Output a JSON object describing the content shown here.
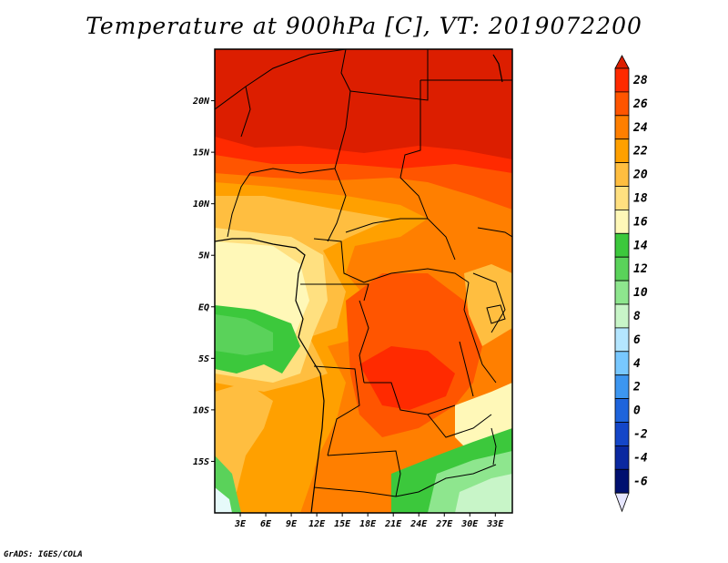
{
  "title": "Temperature at 900hPa [C], VT: 2019072200",
  "credit": "GrADS: IGES/COLA",
  "map": {
    "lon_range": [
      0,
      35
    ],
    "lat_range": [
      -20,
      25
    ],
    "lat_labels": [
      {
        "lat": 20,
        "label": "20N"
      },
      {
        "lat": 15,
        "label": "15N"
      },
      {
        "lat": 10,
        "label": "10N"
      },
      {
        "lat": 5,
        "label": "5N"
      },
      {
        "lat": 0,
        "label": "EQ"
      },
      {
        "lat": -5,
        "label": "5S"
      },
      {
        "lat": -10,
        "label": "10S"
      },
      {
        "lat": -15,
        "label": "15S"
      }
    ],
    "lon_labels": [
      {
        "lon": 3,
        "label": "3E"
      },
      {
        "lon": 6,
        "label": "6E"
      },
      {
        "lon": 9,
        "label": "9E"
      },
      {
        "lon": 12,
        "label": "12E"
      },
      {
        "lon": 15,
        "label": "15E"
      },
      {
        "lon": 18,
        "label": "18E"
      },
      {
        "lon": 21,
        "label": "21E"
      },
      {
        "lon": 24,
        "label": "24E"
      },
      {
        "lon": 27,
        "label": "27E"
      },
      {
        "lon": 30,
        "label": "30E"
      },
      {
        "lon": 33,
        "label": "33E"
      }
    ]
  },
  "colorbar": {
    "levels": [
      "28",
      "26",
      "24",
      "22",
      "20",
      "18",
      "16",
      "14",
      "12",
      "10",
      "8",
      "6",
      "4",
      "2",
      "0",
      "-2",
      "-4",
      "-6"
    ],
    "colors": [
      "#ff2a00",
      "#ff5500",
      "#ff7f00",
      "#ffa000",
      "#ffbe40",
      "#ffe080",
      "#fff8b8",
      "#3cc83c",
      "#5ad25a",
      "#8ee68e",
      "#c8f5c8",
      "#b4e6ff",
      "#78c8ff",
      "#3c96f0",
      "#1e64dc",
      "#1446c8",
      "#0a28a0",
      "#001070"
    ],
    "top_color": "#dc1e00",
    "bottom_color": "#e6e6ff"
  },
  "colors": {
    "t30": "#dc1e00",
    "t28": "#ff2a00",
    "t26": "#ff5500",
    "t24": "#ff7f00",
    "t22": "#ffa000",
    "t20": "#ffbe40",
    "t18": "#ffe080",
    "t16": "#fff8b8",
    "t14": "#3cc83c",
    "t12": "#5ad25a",
    "t10": "#8ee68e",
    "t8": "#c8f5c8",
    "t6": "#e6fafa"
  }
}
